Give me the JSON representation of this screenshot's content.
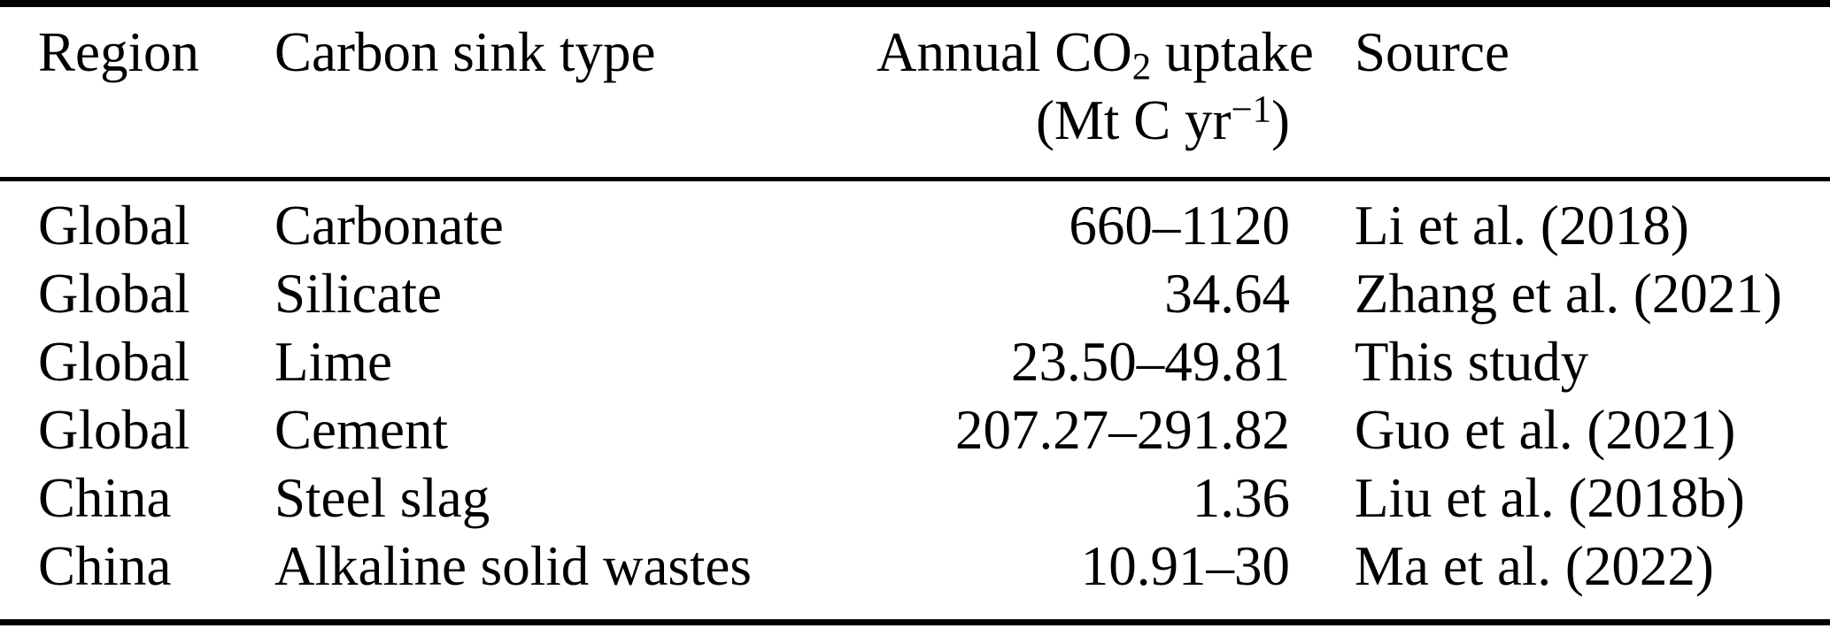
{
  "table": {
    "columns": {
      "region": "Region",
      "sink_type": "Carbon sink type",
      "uptake_line1": {
        "pre": "Annual CO",
        "sub": "2",
        "post": " uptake"
      },
      "uptake_line2": {
        "pre": "(Mt C yr",
        "sup": "−1",
        "post": ")"
      },
      "source": "Source"
    },
    "rows": [
      {
        "region": "Global",
        "sink_type": "Carbonate",
        "uptake": "660–1120",
        "source": "Li et al. (2018)"
      },
      {
        "region": "Global",
        "sink_type": "Silicate",
        "uptake": "34.64",
        "source": "Zhang et al. (2021)"
      },
      {
        "region": "Global",
        "sink_type": "Lime",
        "uptake": "23.50–49.81",
        "source": "This study"
      },
      {
        "region": "Global",
        "sink_type": "Cement",
        "uptake": "207.27–291.82",
        "source": "Guo et al. (2021)"
      },
      {
        "region": "China",
        "sink_type": "Steel slag",
        "uptake": "1.36",
        "source": "Liu et al. (2018b)"
      },
      {
        "region": "China",
        "sink_type": "Alkaline solid wastes",
        "uptake": "10.91–30",
        "source": "Ma et al. (2022)"
      }
    ]
  },
  "colors": {
    "text": "#000000",
    "background": "#ffffff",
    "rule": "#000000"
  }
}
